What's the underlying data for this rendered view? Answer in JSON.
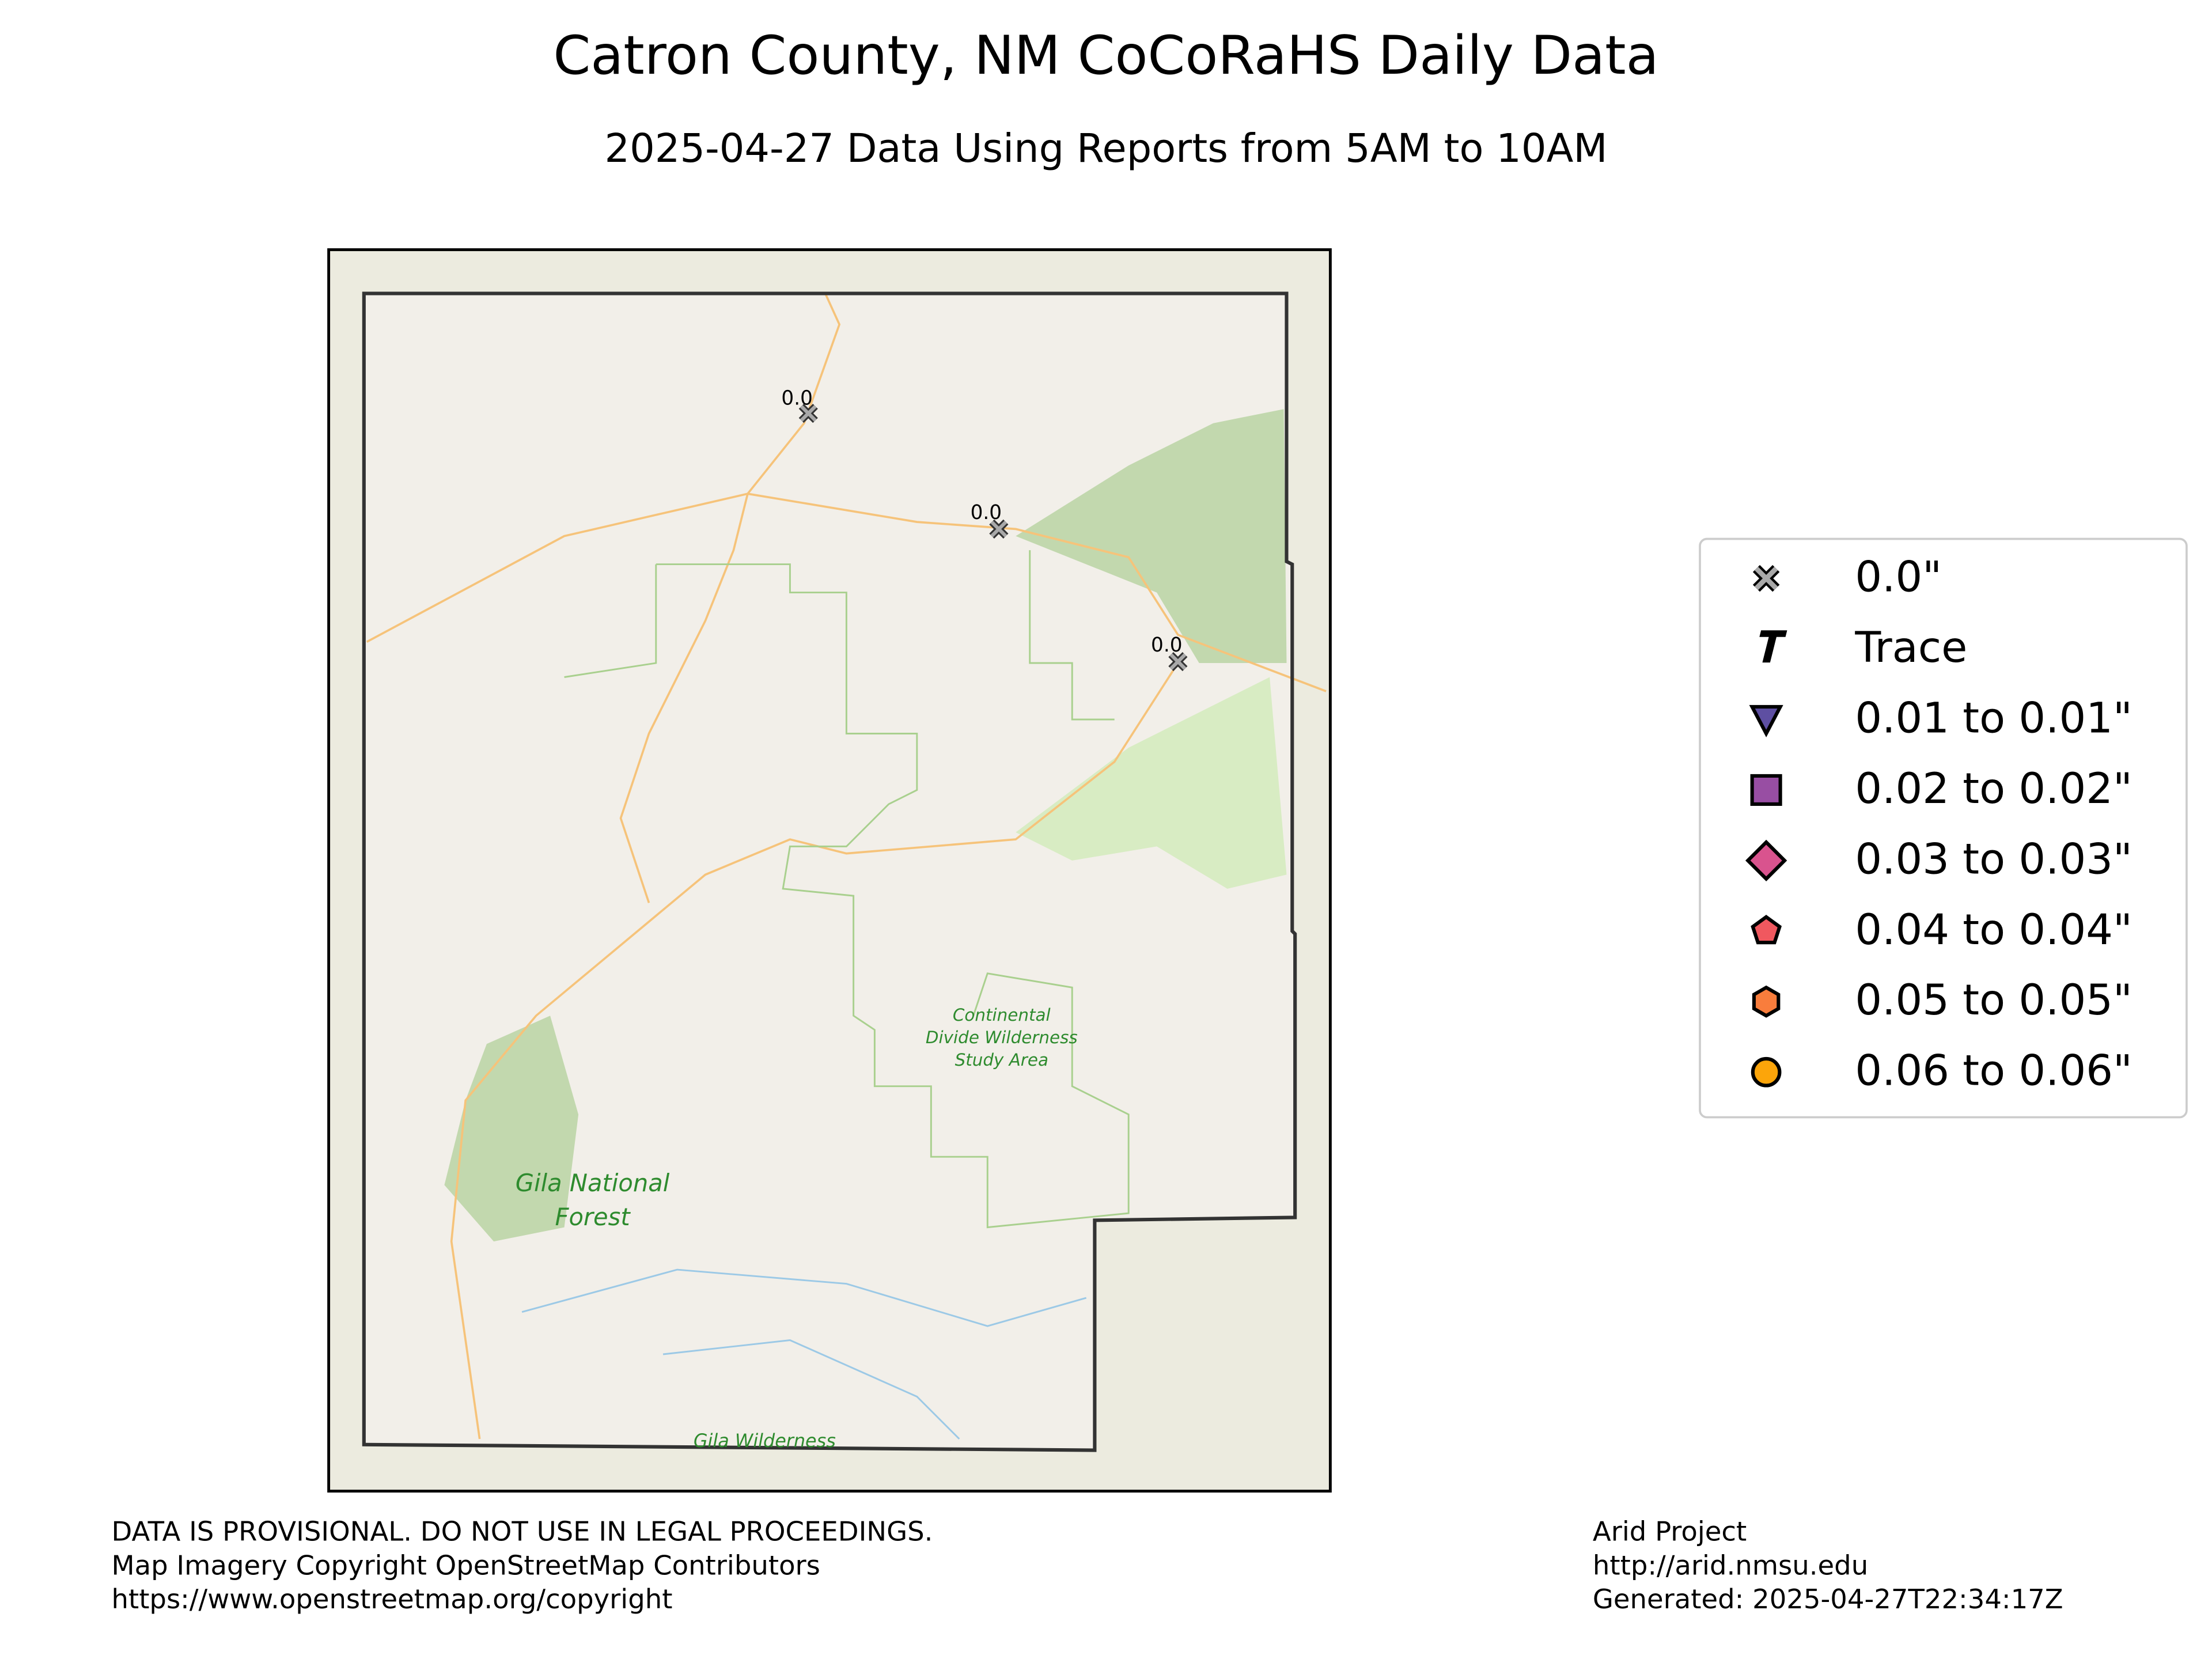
{
  "header": {
    "title": "Catron County, NM CoCoRaHS Daily Data",
    "subtitle": "2025-04-27 Data Using Reports from 5AM to 10AM"
  },
  "map": {
    "stations": [
      {
        "label": "0.0"
      },
      {
        "label": "0.0"
      },
      {
        "label": "0.0"
      }
    ],
    "place_labels": {
      "forest": [
        "Gila National",
        "Forest"
      ],
      "study_area": [
        "Continental",
        "Divide Wilderness",
        "Study Area"
      ],
      "wilderness": [
        "Gila Wilderness"
      ]
    }
  },
  "legend": {
    "items": [
      {
        "label": "0.0\"",
        "color": "#a9a9a9"
      },
      {
        "label": "Trace",
        "color": "#000000"
      },
      {
        "label": "0.01 to 0.01\"",
        "color": "#5e4fa2"
      },
      {
        "label": "0.02 to 0.02\"",
        "color": "#984ea3"
      },
      {
        "label": "0.03 to 0.03\"",
        "color": "#d9538e"
      },
      {
        "label": "0.04 to 0.04\"",
        "color": "#f0585f"
      },
      {
        "label": "0.05 to 0.05\"",
        "color": "#f97d3c"
      },
      {
        "label": "0.06 to 0.06\"",
        "color": "#fca50a"
      }
    ]
  },
  "footer": {
    "left": [
      "DATA IS PROVISIONAL. DO NOT USE IN LEGAL PROCEEDINGS.",
      "Map Imagery Copyright OpenStreetMap Contributors",
      "https://www.openstreetmap.org/copyright"
    ],
    "right": [
      "Arid Project",
      "http://arid.nmsu.edu",
      "Generated: 2025-04-27T22:34:17Z"
    ]
  }
}
